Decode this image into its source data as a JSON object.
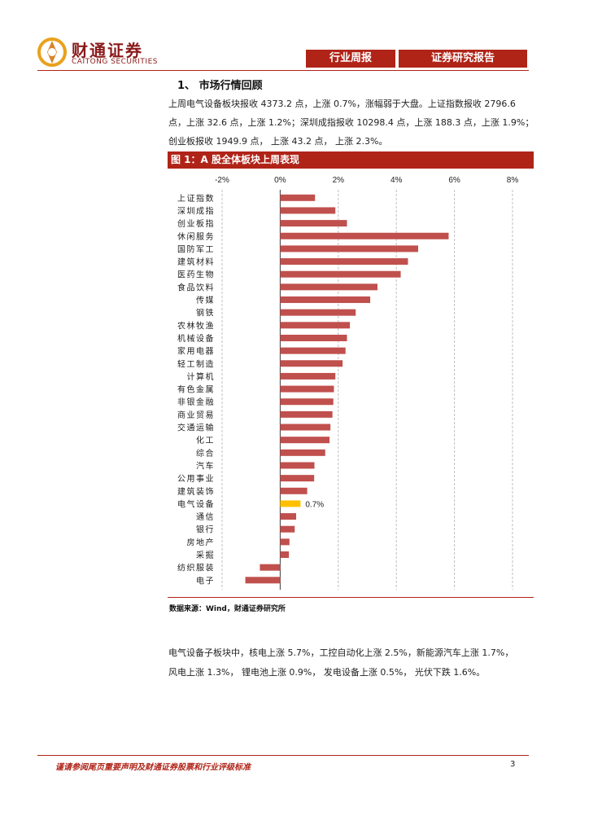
{
  "header": {
    "logo_cn": "财通证券",
    "logo_en": "CAITONG SECURITIES",
    "report_type": "行业周报",
    "report_category": "证券研究报告"
  },
  "section": {
    "title": "1、 市场行情回顾",
    "para1_line1": "上周电气设备板块报收 4373.2 点，上涨 0.7%，涨幅弱于大盘。上证指数报收 2796.6",
    "para1_line2": "点，上涨 32.6 点，上涨 1.2%；深圳成指报收 10298.4 点，上涨 188.3 点，上涨 1.9%；",
    "para1_line3": "创业板报收 1949.9 点， 上涨 43.2 点， 上涨 2.3%。",
    "para2_line1": "电气设备子板块中，核电上涨 5.7%，工控自动化上涨 2.5%，新能源汽车上涨 1.7%，",
    "para2_line2": "风电上涨 1.3%， 锂电池上涨 0.9%， 发电设备上涨 0.5%， 光伏下跌 1.6%。"
  },
  "figure": {
    "title": "图 1：A 股全体板块上周表现",
    "source": "数据来源：Wind，财通证券研究所"
  },
  "chart_data": {
    "type": "bar",
    "orientation": "horizontal",
    "title": "图 1：A 股全体板块上周表现",
    "xlabel": "",
    "ylabel": "",
    "xlim": [
      -2,
      8
    ],
    "x_ticks": [
      "-2%",
      "0%",
      "2%",
      "4%",
      "6%",
      "8%"
    ],
    "x_tick_values": [
      -2,
      0,
      2,
      4,
      6,
      8
    ],
    "grid": true,
    "categories": [
      "上证指数",
      "深圳成指",
      "创业板指",
      "休闲服务",
      "国防军工",
      "建筑材料",
      "医药生物",
      "食品饮料",
      "传媒",
      "钢铁",
      "农林牧渔",
      "机械设备",
      "家用电器",
      "轻工制造",
      "计算机",
      "有色金属",
      "非银金融",
      "商业贸易",
      "交通运输",
      "化工",
      "综合",
      "汽车",
      "公用事业",
      "建筑装饰",
      "电气设备",
      "通信",
      "银行",
      "房地产",
      "采掘",
      "纺织服装",
      "电子"
    ],
    "values": [
      1.2,
      1.9,
      2.3,
      5.8,
      4.75,
      4.4,
      4.15,
      3.35,
      3.1,
      2.6,
      2.4,
      2.3,
      2.25,
      2.15,
      1.9,
      1.85,
      1.83,
      1.8,
      1.73,
      1.7,
      1.55,
      1.18,
      1.17,
      0.93,
      0.7,
      0.55,
      0.5,
      0.32,
      0.3,
      -0.7,
      -1.2
    ],
    "highlight_category": "电气设备",
    "highlight_label": "0.7%",
    "colors": {
      "bar": "#c0504d",
      "highlight": "#ffc000",
      "grid": "#bfbfbf"
    }
  },
  "footer": {
    "disclaimer": "谨请参阅尾页重要声明及财通证券股票和行业评级标准",
    "page": "3"
  }
}
